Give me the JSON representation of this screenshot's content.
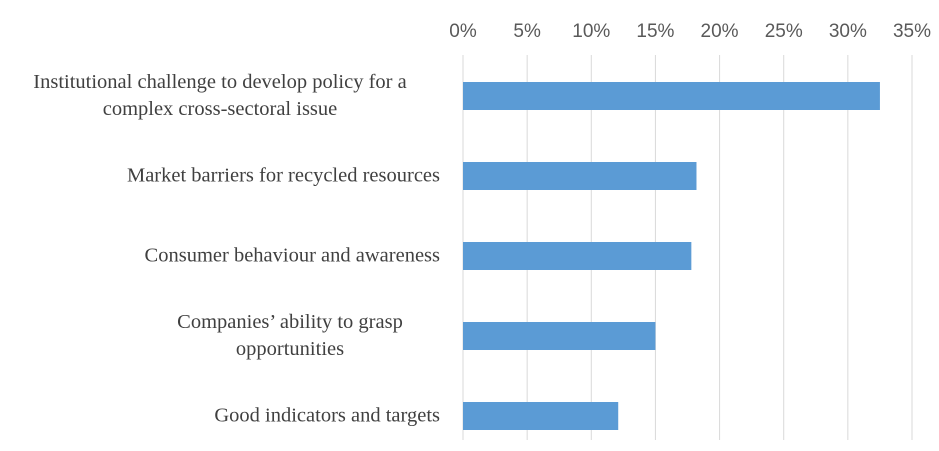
{
  "chart_data": {
    "type": "bar",
    "orientation": "horizontal",
    "categories": [
      "Institutional challenge to develop policy for a complex cross-sectoral issue",
      "Market barriers for recycled resources",
      "Consumer behaviour and awareness",
      "Companies’ ability to grasp opportunities",
      "Good indicators and targets"
    ],
    "values": [
      32.5,
      18.2,
      17.8,
      15,
      12.1
    ],
    "color": "#5b9bd5",
    "xlim": [
      0,
      35
    ],
    "xticks": [
      {
        "value": 0,
        "label": "0%"
      },
      {
        "value": 5,
        "label": "5%"
      },
      {
        "value": 10,
        "label": "10%"
      },
      {
        "value": 15,
        "label": "15%"
      },
      {
        "value": 20,
        "label": "20%"
      },
      {
        "value": 25,
        "label": "25%"
      },
      {
        "value": 30,
        "label": "30%"
      },
      {
        "value": 35,
        "label": "35%"
      }
    ],
    "grid": true,
    "xaxis_position": "top"
  }
}
